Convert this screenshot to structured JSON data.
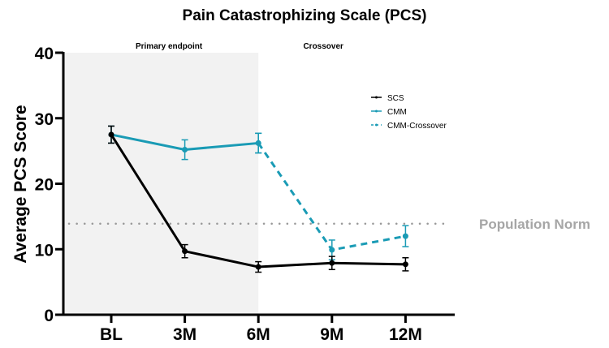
{
  "chart_data": {
    "type": "line",
    "title": "Pain Catastrophizing Scale (PCS)",
    "xlabel": "",
    "ylabel": "Average PCS Score",
    "categories": [
      "BL",
      "3M",
      "6M",
      "9M",
      "12M"
    ],
    "ylim": [
      0,
      40
    ],
    "yticks": [
      0,
      10,
      20,
      30,
      40
    ],
    "grid": false,
    "legend_position": "top-right",
    "regions": [
      {
        "label": "Primary endpoint",
        "from": "BL",
        "to": "6M",
        "shaded": true
      },
      {
        "label": "Crossover",
        "from": "6M",
        "to": "12M",
        "shaded": false
      }
    ],
    "reference_line": {
      "label": "Population Norm",
      "value": 13.9
    },
    "series": [
      {
        "name": "SCS",
        "color": "#000000",
        "dashed": false,
        "x": [
          "BL",
          "3M",
          "6M",
          "9M",
          "12M"
        ],
        "values": [
          27.5,
          9.7,
          7.3,
          7.9,
          7.7
        ],
        "errors": [
          1.3,
          1.0,
          0.8,
          1.0,
          1.0
        ]
      },
      {
        "name": "CMM",
        "color": "#1a9bb5",
        "dashed": false,
        "x": [
          "BL",
          "3M",
          "6M"
        ],
        "values": [
          27.5,
          25.2,
          26.2
        ],
        "errors": [
          1.3,
          1.5,
          1.5
        ]
      },
      {
        "name": "CMM-Crossover",
        "color": "#1a9bb5",
        "dashed": true,
        "x": [
          "6M",
          "9M",
          "12M"
        ],
        "values": [
          26.2,
          9.9,
          12.0
        ],
        "errors": [
          1.5,
          1.5,
          1.6
        ]
      }
    ]
  }
}
